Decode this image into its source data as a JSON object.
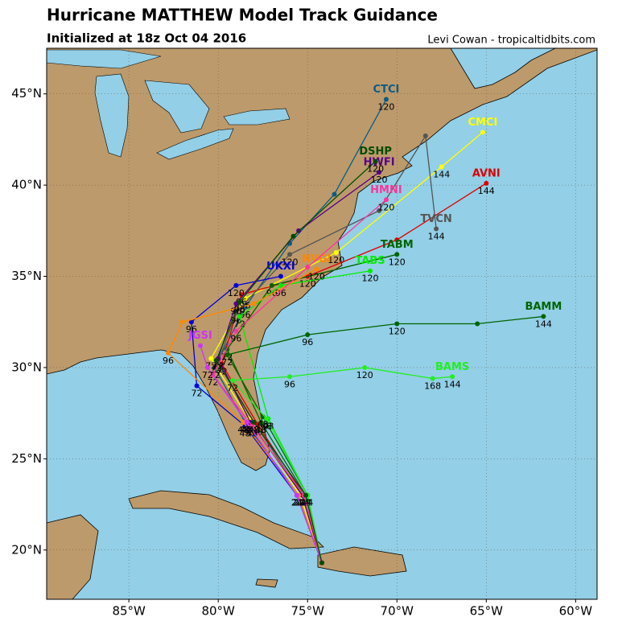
{
  "header": {
    "title": "Hurricane MATTHEW Model Track Guidance",
    "subtitle": "Initialized at 18z Oct 04 2016",
    "credit": "Levi Cowan - tropicaltidbits.com"
  },
  "map": {
    "lonlim": [
      -89.6,
      -58.8
    ],
    "latlim": [
      17.3,
      47.5
    ],
    "lonticks": [
      {
        "value": -85,
        "label": "85°W"
      },
      {
        "value": -80,
        "label": "80°W"
      },
      {
        "value": -75,
        "label": "75°W"
      },
      {
        "value": -70,
        "label": "70°W"
      },
      {
        "value": -65,
        "label": "65°W"
      },
      {
        "value": -60,
        "label": "60°W"
      }
    ],
    "latticks": [
      {
        "value": 20,
        "label": "20°N"
      },
      {
        "value": 25,
        "label": "25°N"
      },
      {
        "value": 30,
        "label": "30°N"
      },
      {
        "value": 35,
        "label": "35°N"
      },
      {
        "value": 40,
        "label": "40°N"
      },
      {
        "value": 45,
        "label": "45°N"
      }
    ],
    "grid": true
  },
  "tracks": [
    {
      "name": "CTCI",
      "color": "#0b5c85",
      "points": [
        [
          -74.2,
          19.3
        ],
        [
          -75.5,
          23
        ],
        [
          -78.5,
          27
        ],
        [
          -80.2,
          30
        ],
        [
          -78.5,
          33.3
        ],
        [
          -76,
          36.8
        ],
        [
          -73.5,
          39.5
        ],
        [
          -70.6,
          44.7
        ]
      ],
      "hours": [
        null,
        24,
        48,
        72,
        96,
        null,
        null,
        120
      ]
    },
    {
      "name": "CMCI",
      "color": "#ffff00",
      "points": [
        [
          -74.2,
          19.3
        ],
        [
          -75.4,
          23
        ],
        [
          -78.3,
          27.2
        ],
        [
          -80.4,
          30.5
        ],
        [
          -78.5,
          33.8
        ],
        [
          -73.4,
          36.3
        ],
        [
          -67.5,
          41
        ],
        [
          -65.2,
          42.9
        ]
      ],
      "hours": [
        null,
        24,
        48,
        72,
        96,
        120,
        144,
        null
      ]
    },
    {
      "name": "AVNI",
      "color": "#dd0000",
      "points": [
        [
          -74.2,
          19.3
        ],
        [
          -75.2,
          23
        ],
        [
          -77.8,
          26.9
        ],
        [
          -79.8,
          30.2
        ],
        [
          -78.7,
          34
        ],
        [
          -75,
          35
        ],
        [
          -70,
          37
        ],
        [
          -65,
          40.1
        ]
      ],
      "hours": [
        null,
        24,
        48,
        72,
        96,
        120,
        null,
        144
      ]
    },
    {
      "name": "TVCN",
      "color": "#555555",
      "points": [
        [
          -74.2,
          19.3
        ],
        [
          -75.3,
          23
        ],
        [
          -78,
          27
        ],
        [
          -80,
          30.3
        ],
        [
          -79,
          33
        ],
        [
          -76,
          36.2
        ],
        [
          -71,
          38.6
        ],
        [
          -68.4,
          42.7
        ],
        [
          -67.8,
          37.6
        ]
      ],
      "hours": [
        null,
        24,
        48,
        72,
        96,
        120,
        null,
        null,
        144
      ]
    },
    {
      "name": "TABM",
      "color": "#006400",
      "points": [
        [
          -74.2,
          19.3
        ],
        [
          -75.1,
          23
        ],
        [
          -77.6,
          27
        ],
        [
          -79.5,
          31
        ],
        [
          -77,
          34.5
        ],
        [
          -70,
          36.2
        ]
      ],
      "hours": [
        null,
        24,
        48,
        72,
        96,
        120
      ]
    },
    {
      "name": "TABS",
      "color": "#00ee00",
      "points": [
        [
          -74.2,
          19.3
        ],
        [
          -75,
          23
        ],
        [
          -77.2,
          27.2
        ],
        [
          -78.8,
          32.8
        ],
        [
          -76.5,
          34.5
        ],
        [
          -71.5,
          35.3
        ]
      ],
      "hours": [
        null,
        24,
        48,
        72,
        96,
        120
      ]
    },
    {
      "name": "BAMM",
      "color": "#006400",
      "points": [
        [
          -74.2,
          19.3
        ],
        [
          -75,
          23
        ],
        [
          -77.5,
          27.3
        ],
        [
          -79.5,
          30.7
        ],
        [
          -75,
          31.8
        ],
        [
          -70,
          32.4
        ],
        [
          -65.5,
          32.4
        ],
        [
          -61.8,
          32.8
        ]
      ],
      "hours": [
        null,
        24,
        48,
        72,
        96,
        120,
        null,
        144
      ]
    },
    {
      "name": "BAMS",
      "color": "#22ee22",
      "points": [
        [
          -74.2,
          19.3
        ],
        [
          -75,
          23
        ],
        [
          -77.3,
          27.2
        ],
        [
          -79.2,
          29.3
        ],
        [
          -76,
          29.5
        ],
        [
          -71.8,
          30
        ],
        [
          -68,
          29.4
        ],
        [
          -66.9,
          29.5
        ]
      ],
      "hours": [
        null,
        24,
        48,
        72,
        96,
        120,
        168,
        144
      ]
    },
    {
      "name": "UKXI",
      "color": "#0000dd",
      "points": [
        [
          -74.2,
          19.3
        ],
        [
          -75.6,
          23
        ],
        [
          -78.5,
          26.8
        ],
        [
          -81.2,
          29
        ],
        [
          -81.5,
          32.5
        ],
        [
          -79,
          34.5
        ],
        [
          -76.5,
          35
        ]
      ],
      "hours": [
        null,
        24,
        48,
        72,
        96,
        120,
        null
      ]
    },
    {
      "name": "HWFI",
      "color": "#550088",
      "points": [
        [
          -74.2,
          19.3
        ],
        [
          -75.3,
          23
        ],
        [
          -78.2,
          27
        ],
        [
          -80,
          30.5
        ],
        [
          -79,
          33.5
        ],
        [
          -75.5,
          37.5
        ],
        [
          -71,
          40.7
        ]
      ],
      "hours": [
        null,
        24,
        48,
        72,
        96,
        null,
        120
      ]
    },
    {
      "name": "NVGI",
      "color": "#ff8800",
      "points": [
        [
          -74.2,
          19.3
        ],
        [
          -75.5,
          23
        ],
        [
          -78.6,
          27
        ],
        [
          -82.8,
          30.8
        ],
        [
          -82,
          32.5
        ],
        [
          -78,
          33.5
        ],
        [
          -74.5,
          35.4
        ]
      ],
      "hours": [
        null,
        24,
        48,
        96,
        null,
        null,
        120
      ]
    },
    {
      "name": "HMNI",
      "color": "#ff3399",
      "points": [
        [
          -74.2,
          19.3
        ],
        [
          -75.2,
          23
        ],
        [
          -78.1,
          26.8
        ],
        [
          -80.3,
          29.6
        ],
        [
          -79,
          32
        ],
        [
          -75,
          35.5
        ],
        [
          -70.6,
          39.2
        ]
      ],
      "hours": [
        null,
        24,
        48,
        72,
        96,
        null,
        120
      ]
    },
    {
      "name": "JGSI",
      "color": "#cc33ff",
      "points": [
        [
          -74.2,
          19.3
        ],
        [
          -75.6,
          23
        ],
        [
          -78.4,
          27
        ],
        [
          -80.6,
          30
        ],
        [
          -81,
          31.2
        ]
      ],
      "hours": [
        null,
        24,
        48,
        72,
        null
      ]
    },
    {
      "name": "DSHP",
      "color": "#004d00",
      "points": [
        [
          -74.2,
          19.3
        ],
        [
          -75.1,
          23
        ],
        [
          -78,
          27
        ],
        [
          -80.1,
          30.4
        ],
        [
          -78.8,
          33.6
        ],
        [
          -75.8,
          37.2
        ],
        [
          -71.2,
          41.3
        ]
      ],
      "hours": [
        null,
        24,
        48,
        72,
        96,
        null,
        120
      ]
    }
  ]
}
